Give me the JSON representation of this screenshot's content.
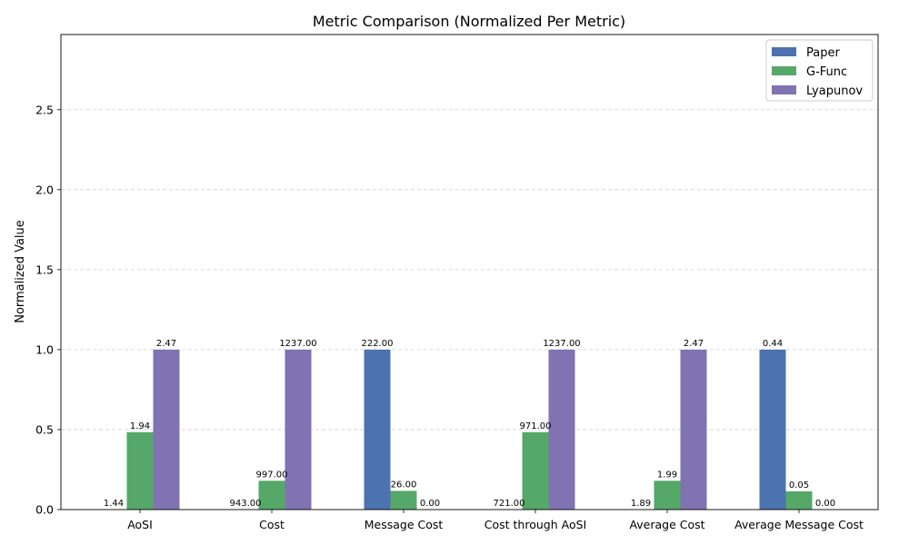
{
  "chart_data": {
    "type": "bar",
    "title": "Metric Comparison (Normalized Per Metric)",
    "xlabel": "",
    "ylabel": "Normalized Value",
    "ylim": [
      0,
      2.97
    ],
    "yticks": [
      "0.0",
      "0.5",
      "1.0",
      "1.5",
      "2.0",
      "2.5"
    ],
    "ytick_values": [
      0,
      0.5,
      1.0,
      1.5,
      2.0,
      2.5
    ],
    "grid": "y-dashed",
    "legend_position": "top-right",
    "categories": [
      "AoSI",
      "Cost",
      "Message Cost",
      "Cost through AoSI",
      "Average Cost",
      "Average Message Cost"
    ],
    "series": [
      {
        "name": "Paper",
        "color": "#4c72b0",
        "values": [
          0.0,
          0.0,
          1.0,
          0.0,
          0.0,
          1.0
        ],
        "labels": [
          "1.44",
          "943.00",
          "222.00",
          "721.00",
          "1.89",
          "0.44"
        ]
      },
      {
        "name": "G-Func",
        "color": "#55a868",
        "values": [
          0.484,
          0.18,
          0.117,
          0.484,
          0.18,
          0.114
        ],
        "labels": [
          "1.94",
          "997.00",
          "26.00",
          "971.00",
          "1.99",
          "0.05"
        ]
      },
      {
        "name": "Lyapunov",
        "color": "#8172b2",
        "values": [
          1.0,
          1.0,
          0.0,
          1.0,
          1.0,
          0.0
        ],
        "labels": [
          "2.47",
          "1237.00",
          "0.00",
          "1237.00",
          "2.47",
          "0.00"
        ]
      }
    ]
  }
}
